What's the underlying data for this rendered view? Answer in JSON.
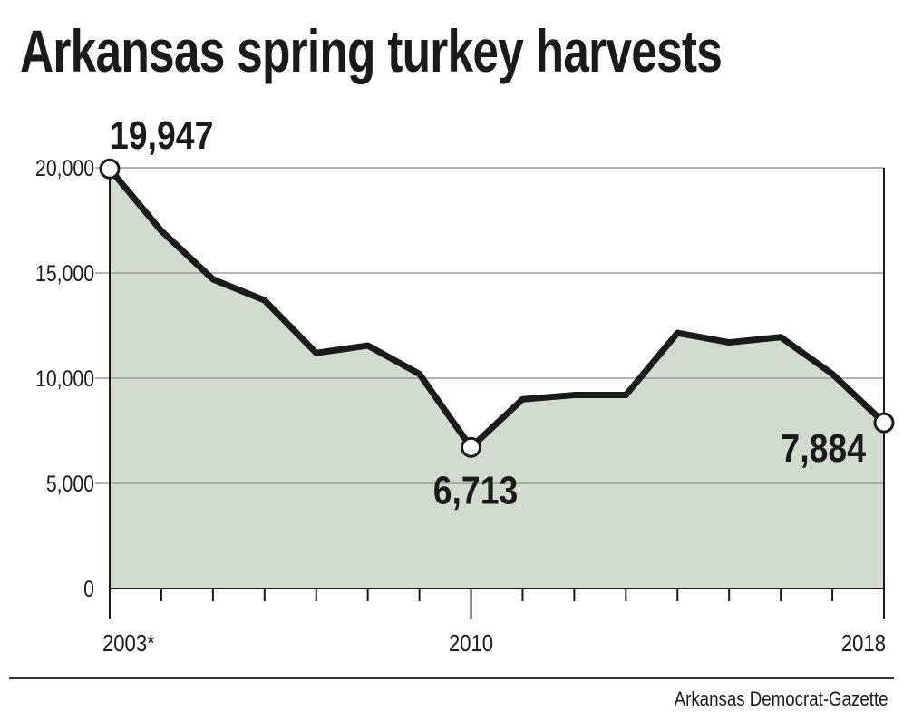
{
  "chart_data": {
    "type": "area",
    "title": "Arkansas spring turkey harvests",
    "source": "Arkansas Democrat-Gazette",
    "x": [
      2003,
      2004,
      2005,
      2006,
      2007,
      2008,
      2009,
      2010,
      2011,
      2012,
      2013,
      2014,
      2015,
      2016,
      2017,
      2018
    ],
    "values": [
      19947,
      17000,
      14700,
      13700,
      11200,
      11550,
      10200,
      6713,
      9000,
      9200,
      9200,
      12150,
      11700,
      11950,
      10200,
      7884
    ],
    "xtick_labels": [
      {
        "year": 2003,
        "label": "2003*"
      },
      {
        "year": 2010,
        "label": "2010"
      },
      {
        "year": 2018,
        "label": "2018"
      }
    ],
    "yticks": [
      0,
      5000,
      10000,
      15000,
      20000
    ],
    "ytick_labels": [
      "0",
      "5,000",
      "10,000",
      "15,000",
      "20,000"
    ],
    "ylim": [
      0,
      20000
    ],
    "annotations": [
      {
        "year": 2003,
        "label": "19,947",
        "pos": "above"
      },
      {
        "year": 2010,
        "label": "6,713",
        "pos": "below"
      },
      {
        "year": 2018,
        "label": "7,884",
        "pos": "left"
      }
    ],
    "fill_color": "#d1dccf",
    "line_color": "#1a1a1a",
    "grid_color": "#999999"
  }
}
